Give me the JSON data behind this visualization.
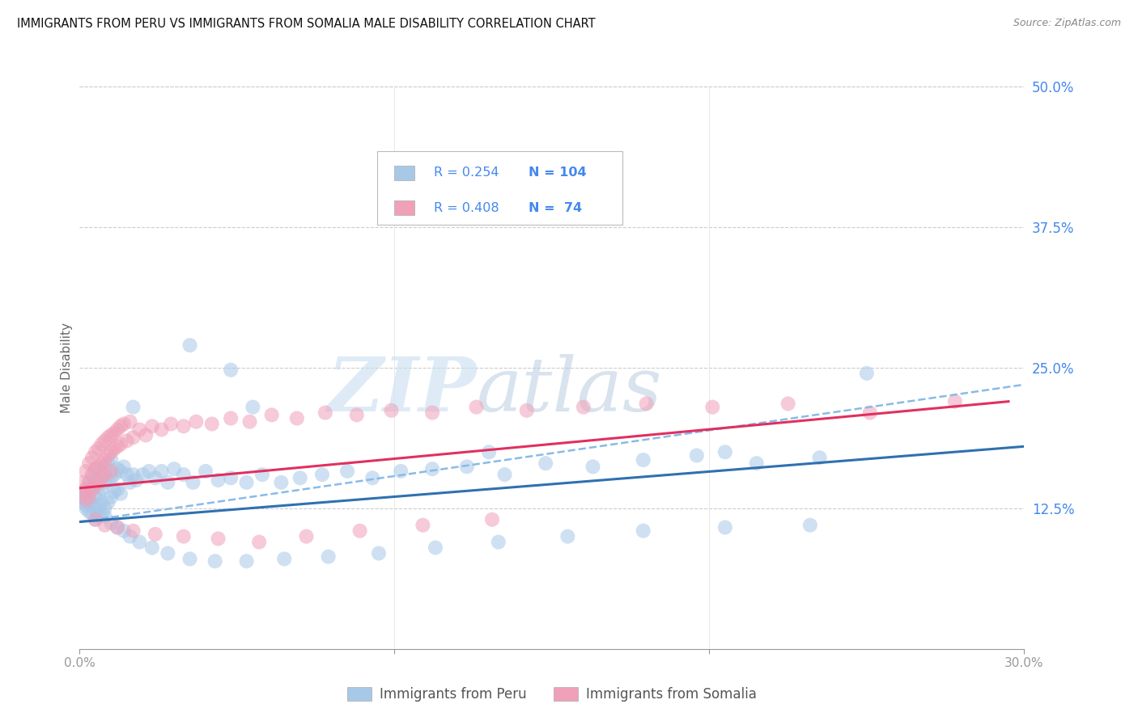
{
  "title": "IMMIGRANTS FROM PERU VS IMMIGRANTS FROM SOMALIA MALE DISABILITY CORRELATION CHART",
  "source": "Source: ZipAtlas.com",
  "ylabel": "Male Disability",
  "xlim": [
    0.0,
    0.3
  ],
  "ylim": [
    0.0,
    0.5
  ],
  "xticks": [
    0.0,
    0.1,
    0.2,
    0.3
  ],
  "xtick_labels": [
    "0.0%",
    "",
    "",
    "30.0%"
  ],
  "ytick_labels_right": [
    "12.5%",
    "25.0%",
    "37.5%",
    "50.0%"
  ],
  "yticks_right": [
    0.125,
    0.25,
    0.375,
    0.5
  ],
  "peru_color": "#a8c8e8",
  "somalia_color": "#f0a0b8",
  "peru_line_color": "#3070b0",
  "somalia_line_color": "#e03060",
  "dashed_line_color": "#88bbe8",
  "background_color": "#ffffff",
  "grid_color": "#cccccc",
  "title_color": "#111111",
  "source_color": "#888888",
  "right_tick_color": "#4488ee",
  "peru_scatter_x": [
    0.001,
    0.001,
    0.001,
    0.002,
    0.002,
    0.002,
    0.002,
    0.003,
    0.003,
    0.003,
    0.003,
    0.003,
    0.004,
    0.004,
    0.004,
    0.004,
    0.005,
    0.005,
    0.005,
    0.005,
    0.005,
    0.006,
    0.006,
    0.006,
    0.006,
    0.007,
    0.007,
    0.007,
    0.007,
    0.008,
    0.008,
    0.008,
    0.009,
    0.009,
    0.009,
    0.01,
    0.01,
    0.01,
    0.011,
    0.011,
    0.012,
    0.012,
    0.013,
    0.013,
    0.014,
    0.015,
    0.016,
    0.017,
    0.018,
    0.02,
    0.022,
    0.024,
    0.026,
    0.028,
    0.03,
    0.033,
    0.036,
    0.04,
    0.044,
    0.048,
    0.053,
    0.058,
    0.064,
    0.07,
    0.077,
    0.085,
    0.093,
    0.102,
    0.112,
    0.123,
    0.135,
    0.148,
    0.163,
    0.179,
    0.196,
    0.215,
    0.235,
    0.008,
    0.01,
    0.012,
    0.014,
    0.016,
    0.019,
    0.023,
    0.028,
    0.035,
    0.043,
    0.053,
    0.065,
    0.079,
    0.095,
    0.113,
    0.133,
    0.155,
    0.179,
    0.205,
    0.232,
    0.017,
    0.035,
    0.055,
    0.048,
    0.13,
    0.205,
    0.25
  ],
  "peru_scatter_y": [
    0.135,
    0.13,
    0.14,
    0.128,
    0.138,
    0.132,
    0.125,
    0.142,
    0.13,
    0.148,
    0.122,
    0.138,
    0.145,
    0.128,
    0.155,
    0.12,
    0.148,
    0.135,
    0.125,
    0.16,
    0.115,
    0.152,
    0.138,
    0.128,
    0.118,
    0.158,
    0.142,
    0.13,
    0.12,
    0.162,
    0.148,
    0.125,
    0.165,
    0.15,
    0.13,
    0.168,
    0.152,
    0.135,
    0.155,
    0.14,
    0.16,
    0.142,
    0.158,
    0.138,
    0.162,
    0.155,
    0.148,
    0.155,
    0.15,
    0.155,
    0.158,
    0.152,
    0.158,
    0.148,
    0.16,
    0.155,
    0.148,
    0.158,
    0.15,
    0.152,
    0.148,
    0.155,
    0.148,
    0.152,
    0.155,
    0.158,
    0.152,
    0.158,
    0.16,
    0.162,
    0.155,
    0.165,
    0.162,
    0.168,
    0.172,
    0.165,
    0.17,
    0.118,
    0.112,
    0.108,
    0.105,
    0.1,
    0.095,
    0.09,
    0.085,
    0.08,
    0.078,
    0.078,
    0.08,
    0.082,
    0.085,
    0.09,
    0.095,
    0.1,
    0.105,
    0.108,
    0.11,
    0.215,
    0.27,
    0.215,
    0.248,
    0.175,
    0.175,
    0.245
  ],
  "somalia_scatter_x": [
    0.001,
    0.001,
    0.002,
    0.002,
    0.002,
    0.003,
    0.003,
    0.003,
    0.004,
    0.004,
    0.004,
    0.005,
    0.005,
    0.005,
    0.006,
    0.006,
    0.006,
    0.007,
    0.007,
    0.007,
    0.008,
    0.008,
    0.008,
    0.009,
    0.009,
    0.01,
    0.01,
    0.01,
    0.011,
    0.011,
    0.012,
    0.012,
    0.013,
    0.013,
    0.014,
    0.015,
    0.016,
    0.017,
    0.019,
    0.021,
    0.023,
    0.026,
    0.029,
    0.033,
    0.037,
    0.042,
    0.048,
    0.054,
    0.061,
    0.069,
    0.078,
    0.088,
    0.099,
    0.112,
    0.126,
    0.142,
    0.16,
    0.18,
    0.201,
    0.225,
    0.251,
    0.278,
    0.005,
    0.008,
    0.012,
    0.017,
    0.024,
    0.033,
    0.044,
    0.057,
    0.072,
    0.089,
    0.109,
    0.131
  ],
  "somalia_scatter_y": [
    0.148,
    0.138,
    0.158,
    0.142,
    0.132,
    0.165,
    0.148,
    0.135,
    0.17,
    0.155,
    0.142,
    0.175,
    0.16,
    0.145,
    0.178,
    0.162,
    0.148,
    0.182,
    0.165,
    0.152,
    0.185,
    0.168,
    0.155,
    0.188,
    0.172,
    0.19,
    0.175,
    0.158,
    0.192,
    0.178,
    0.195,
    0.18,
    0.198,
    0.182,
    0.2,
    0.185,
    0.202,
    0.188,
    0.195,
    0.19,
    0.198,
    0.195,
    0.2,
    0.198,
    0.202,
    0.2,
    0.205,
    0.202,
    0.208,
    0.205,
    0.21,
    0.208,
    0.212,
    0.21,
    0.215,
    0.212,
    0.215,
    0.218,
    0.215,
    0.218,
    0.21,
    0.22,
    0.115,
    0.11,
    0.108,
    0.105,
    0.102,
    0.1,
    0.098,
    0.095,
    0.1,
    0.105,
    0.11,
    0.115
  ],
  "peru_trend_x": [
    0.0,
    0.3
  ],
  "peru_trend_y": [
    0.113,
    0.18
  ],
  "somalia_trend_x": [
    0.0,
    0.295
  ],
  "somalia_trend_y": [
    0.143,
    0.22
  ],
  "dashed_trend_x": [
    0.0,
    0.3
  ],
  "dashed_trend_y": [
    0.113,
    0.235
  ],
  "legend_r1": "R = 0.254",
  "legend_n1": "N = 104",
  "legend_r2": "R = 0.408",
  "legend_n2": "N =  74",
  "watermark_zip": "ZIP",
  "watermark_atlas": "atlas",
  "bottom_legend": [
    "Immigrants from Peru",
    "Immigrants from Somalia"
  ]
}
